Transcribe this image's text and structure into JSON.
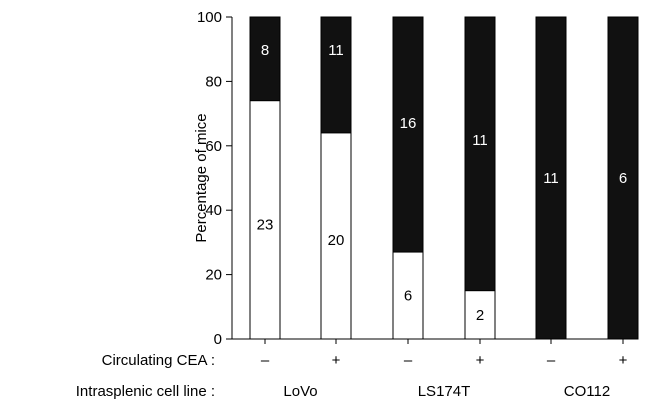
{
  "chart_data": {
    "type": "bar",
    "stacked": true,
    "ylabel": "Percentage of mice",
    "ylim": [
      0,
      100
    ],
    "yticks": [
      0,
      20,
      40,
      60,
      80,
      100
    ],
    "grid": false,
    "row_labels": {
      "cea": "Circulating CEA :",
      "cell_line": "Intrasplenic cell line :"
    },
    "groups": [
      "LoVo",
      "LS174T",
      "CO112"
    ],
    "bars": [
      {
        "group": "LoVo",
        "cea": "–",
        "white_percent": 74,
        "white_label": "23",
        "black_label": "8"
      },
      {
        "group": "LoVo",
        "cea": "+",
        "white_percent": 64,
        "white_label": "20",
        "black_label": "11"
      },
      {
        "group": "LS174T",
        "cea": "–",
        "white_percent": 27,
        "white_label": "6",
        "black_label": "16"
      },
      {
        "group": "LS174T",
        "cea": "+",
        "white_percent": 15,
        "white_label": "2",
        "black_label": "11"
      },
      {
        "group": "CO112",
        "cea": "–",
        "white_percent": 0,
        "white_label": "",
        "black_label": "11"
      },
      {
        "group": "CO112",
        "cea": "+",
        "white_percent": 0,
        "white_label": "",
        "black_label": "6"
      }
    ],
    "colors": {
      "lower": "#ffffff",
      "upper": "#111111",
      "outline": "#000000"
    }
  }
}
